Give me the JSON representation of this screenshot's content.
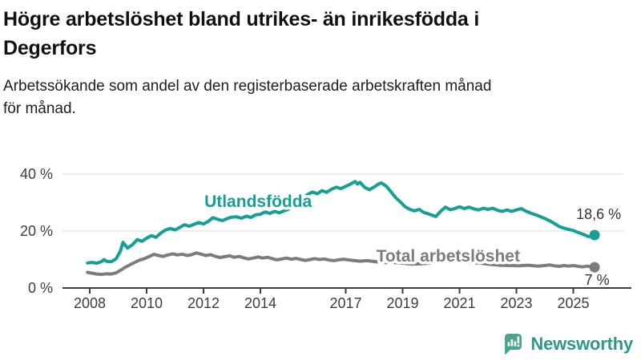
{
  "header": {
    "title_lines": [
      "Högre arbetslöshet bland utrikes- än inrikesfödda i",
      "Degerfors"
    ],
    "subtitle_lines": [
      "Arbetssökande som andel av den registerbaserade arbetskraften månad",
      "för månad."
    ]
  },
  "branding": {
    "logo_text": "Newsworthy",
    "logo_icon": "bar-chart-speech-bubble-icon",
    "logo_icon_color": "#4BA391",
    "logo_text_color": "#2F968C"
  },
  "chart_data": {
    "type": "line",
    "title": "Högre arbetslöshet bland utrikes- än inrikesfödda i Degerfors",
    "subtitle": "Arbetssökande som andel av den registerbaserade arbetskraften månad för månad.",
    "xlabel": "",
    "ylabel": "",
    "xlim": [
      2007.8,
      2026.3
    ],
    "ylim": [
      0,
      45
    ],
    "grid": "horizontal",
    "legend_position": "inline-labels",
    "style": {
      "grid_color": "#D9D9D9",
      "axis_color": "#3D3D3D",
      "tick_label_color": "#3D3D3D",
      "annotation_color": "#333333",
      "background": "#FFFFFF"
    },
    "y_ticks": [
      {
        "label": "0 %",
        "value": 0
      },
      {
        "label": "20 %",
        "value": 20
      },
      {
        "label": "40 %",
        "value": 40
      }
    ],
    "x_ticks": [
      {
        "label": "2008",
        "year": 2008
      },
      {
        "label": "2010",
        "year": 2010
      },
      {
        "label": "2012",
        "year": 2012
      },
      {
        "label": "2014",
        "year": 2014
      },
      {
        "label": "2017",
        "year": 2017
      },
      {
        "label": "2019",
        "year": 2019
      },
      {
        "label": "2021",
        "year": 2021
      },
      {
        "label": "2023",
        "year": 2023
      },
      {
        "label": "2025",
        "year": 2025
      }
    ],
    "series": [
      {
        "name": "Utlandsfödda",
        "color": "#14A094",
        "end_label": "18,6 %",
        "end_value": 18.6,
        "label_at": [
          2013.92,
          28.4
        ],
        "end_label_offset": [
          5,
          -20
        ],
        "points": [
          [
            2007.92,
            8.8
          ],
          [
            2008.08,
            9.0
          ],
          [
            2008.25,
            8.7
          ],
          [
            2008.42,
            9.3
          ],
          [
            2008.5,
            10.0
          ],
          [
            2008.58,
            9.4
          ],
          [
            2008.75,
            9.2
          ],
          [
            2008.92,
            10.2
          ],
          [
            2009.08,
            13.0
          ],
          [
            2009.17,
            16.0
          ],
          [
            2009.33,
            14.0
          ],
          [
            2009.5,
            15.2
          ],
          [
            2009.67,
            17.0
          ],
          [
            2009.83,
            16.4
          ],
          [
            2010.0,
            17.5
          ],
          [
            2010.17,
            18.4
          ],
          [
            2010.33,
            17.8
          ],
          [
            2010.5,
            19.3
          ],
          [
            2010.67,
            20.4
          ],
          [
            2010.83,
            20.9
          ],
          [
            2011.0,
            20.4
          ],
          [
            2011.17,
            21.3
          ],
          [
            2011.33,
            22.2
          ],
          [
            2011.5,
            21.7
          ],
          [
            2011.67,
            22.4
          ],
          [
            2011.83,
            23.0
          ],
          [
            2012.0,
            22.5
          ],
          [
            2012.17,
            23.4
          ],
          [
            2012.33,
            24.7
          ],
          [
            2012.5,
            24.1
          ],
          [
            2012.67,
            23.7
          ],
          [
            2012.83,
            24.4
          ],
          [
            2013.0,
            24.9
          ],
          [
            2013.17,
            25.0
          ],
          [
            2013.33,
            24.5
          ],
          [
            2013.5,
            25.2
          ],
          [
            2013.67,
            24.8
          ],
          [
            2013.83,
            25.7
          ],
          [
            2014.0,
            25.9
          ],
          [
            2014.17,
            26.7
          ],
          [
            2014.33,
            26.2
          ],
          [
            2014.5,
            26.9
          ],
          [
            2014.67,
            26.4
          ],
          [
            2014.83,
            27.1
          ],
          [
            2015.0,
            27.7
          ],
          [
            2015.17,
            28.9
          ],
          [
            2015.33,
            30.3
          ],
          [
            2015.5,
            31.6
          ],
          [
            2015.67,
            32.9
          ],
          [
            2015.83,
            33.7
          ],
          [
            2016.0,
            33.1
          ],
          [
            2016.17,
            34.2
          ],
          [
            2016.33,
            33.6
          ],
          [
            2016.5,
            34.7
          ],
          [
            2016.67,
            35.4
          ],
          [
            2016.83,
            34.9
          ],
          [
            2017.0,
            35.7
          ],
          [
            2017.17,
            36.5
          ],
          [
            2017.33,
            37.4
          ],
          [
            2017.42,
            36.5
          ],
          [
            2017.5,
            37.1
          ],
          [
            2017.67,
            35.3
          ],
          [
            2017.83,
            34.5
          ],
          [
            2018.0,
            35.5
          ],
          [
            2018.17,
            36.6
          ],
          [
            2018.25,
            36.9
          ],
          [
            2018.42,
            35.8
          ],
          [
            2018.58,
            33.9
          ],
          [
            2018.75,
            31.8
          ],
          [
            2018.92,
            30.2
          ],
          [
            2019.08,
            28.6
          ],
          [
            2019.25,
            27.6
          ],
          [
            2019.42,
            27.1
          ],
          [
            2019.58,
            27.6
          ],
          [
            2019.75,
            26.5
          ],
          [
            2019.92,
            26.0
          ],
          [
            2020.08,
            25.4
          ],
          [
            2020.17,
            25.1
          ],
          [
            2020.33,
            26.9
          ],
          [
            2020.5,
            28.4
          ],
          [
            2020.67,
            27.5
          ],
          [
            2020.83,
            27.9
          ],
          [
            2021.0,
            28.5
          ],
          [
            2021.17,
            27.9
          ],
          [
            2021.33,
            28.4
          ],
          [
            2021.5,
            27.8
          ],
          [
            2021.67,
            27.4
          ],
          [
            2021.83,
            28.0
          ],
          [
            2022.0,
            27.6
          ],
          [
            2022.17,
            28.0
          ],
          [
            2022.33,
            27.3
          ],
          [
            2022.5,
            26.9
          ],
          [
            2022.67,
            27.4
          ],
          [
            2022.83,
            26.9
          ],
          [
            2023.0,
            27.4
          ],
          [
            2023.17,
            27.9
          ],
          [
            2023.33,
            27.0
          ],
          [
            2023.5,
            26.3
          ],
          [
            2023.67,
            25.7
          ],
          [
            2023.83,
            25.1
          ],
          [
            2024.0,
            24.4
          ],
          [
            2024.17,
            23.6
          ],
          [
            2024.33,
            22.7
          ],
          [
            2024.5,
            21.6
          ],
          [
            2024.67,
            21.0
          ],
          [
            2024.83,
            20.6
          ],
          [
            2025.0,
            20.2
          ],
          [
            2025.17,
            19.5
          ],
          [
            2025.33,
            18.9
          ],
          [
            2025.5,
            18.2
          ],
          [
            2025.58,
            18.0
          ],
          [
            2025.67,
            18.4
          ],
          [
            2025.75,
            18.6
          ]
        ]
      },
      {
        "name": "Total arbetslöshet",
        "color": "#7B7B80",
        "end_label": "7 %",
        "end_value": 7.3,
        "label_at": [
          2020.6,
          9.3
        ],
        "end_label_offset": [
          3,
          22
        ],
        "points": [
          [
            2007.92,
            5.5
          ],
          [
            2008.08,
            5.2
          ],
          [
            2008.25,
            4.9
          ],
          [
            2008.42,
            4.8
          ],
          [
            2008.58,
            5.0
          ],
          [
            2008.75,
            4.9
          ],
          [
            2008.92,
            5.3
          ],
          [
            2009.08,
            6.2
          ],
          [
            2009.25,
            7.3
          ],
          [
            2009.5,
            8.6
          ],
          [
            2009.75,
            9.8
          ],
          [
            2009.92,
            10.3
          ],
          [
            2010.08,
            11.0
          ],
          [
            2010.25,
            11.8
          ],
          [
            2010.42,
            11.4
          ],
          [
            2010.58,
            11.1
          ],
          [
            2010.75,
            11.6
          ],
          [
            2010.92,
            12.0
          ],
          [
            2011.08,
            11.6
          ],
          [
            2011.25,
            11.9
          ],
          [
            2011.42,
            11.4
          ],
          [
            2011.58,
            11.7
          ],
          [
            2011.75,
            12.3
          ],
          [
            2011.92,
            11.9
          ],
          [
            2012.08,
            11.4
          ],
          [
            2012.25,
            11.7
          ],
          [
            2012.42,
            11.1
          ],
          [
            2012.58,
            10.7
          ],
          [
            2012.75,
            11.0
          ],
          [
            2012.92,
            11.3
          ],
          [
            2013.08,
            10.8
          ],
          [
            2013.25,
            11.1
          ],
          [
            2013.42,
            10.6
          ],
          [
            2013.58,
            10.2
          ],
          [
            2013.75,
            10.5
          ],
          [
            2013.92,
            10.9
          ],
          [
            2014.08,
            10.5
          ],
          [
            2014.25,
            10.8
          ],
          [
            2014.42,
            10.3
          ],
          [
            2014.58,
            9.9
          ],
          [
            2014.75,
            10.2
          ],
          [
            2014.92,
            10.5
          ],
          [
            2015.08,
            10.1
          ],
          [
            2015.25,
            10.4
          ],
          [
            2015.42,
            10.0
          ],
          [
            2015.58,
            9.7
          ],
          [
            2015.75,
            10.0
          ],
          [
            2015.92,
            10.3
          ],
          [
            2016.08,
            10.0
          ],
          [
            2016.25,
            10.2
          ],
          [
            2016.42,
            9.8
          ],
          [
            2016.58,
            9.6
          ],
          [
            2016.75,
            9.9
          ],
          [
            2016.92,
            10.1
          ],
          [
            2017.08,
            9.9
          ],
          [
            2017.25,
            9.7
          ],
          [
            2017.5,
            9.4
          ],
          [
            2017.75,
            9.6
          ],
          [
            2018.0,
            9.3
          ],
          [
            2018.33,
            8.9
          ],
          [
            2018.67,
            9.0
          ],
          [
            2019.0,
            8.7
          ],
          [
            2019.33,
            8.4
          ],
          [
            2019.67,
            8.5
          ],
          [
            2020.0,
            8.8
          ],
          [
            2020.33,
            9.7
          ],
          [
            2020.58,
            10.0
          ],
          [
            2020.83,
            9.6
          ],
          [
            2021.08,
            9.3
          ],
          [
            2021.42,
            9.0
          ],
          [
            2021.75,
            8.7
          ],
          [
            2022.08,
            8.3
          ],
          [
            2022.42,
            8.0
          ],
          [
            2022.75,
            7.9
          ],
          [
            2023.08,
            7.8
          ],
          [
            2023.42,
            8.0
          ],
          [
            2023.75,
            7.7
          ],
          [
            2024.0,
            7.9
          ],
          [
            2024.17,
            8.1
          ],
          [
            2024.33,
            7.8
          ],
          [
            2024.5,
            7.6
          ],
          [
            2024.67,
            7.9
          ],
          [
            2024.83,
            7.7
          ],
          [
            2025.0,
            7.9
          ],
          [
            2025.17,
            7.6
          ],
          [
            2025.33,
            7.4
          ],
          [
            2025.5,
            7.7
          ],
          [
            2025.67,
            7.3
          ],
          [
            2025.75,
            7.3
          ]
        ]
      }
    ]
  }
}
